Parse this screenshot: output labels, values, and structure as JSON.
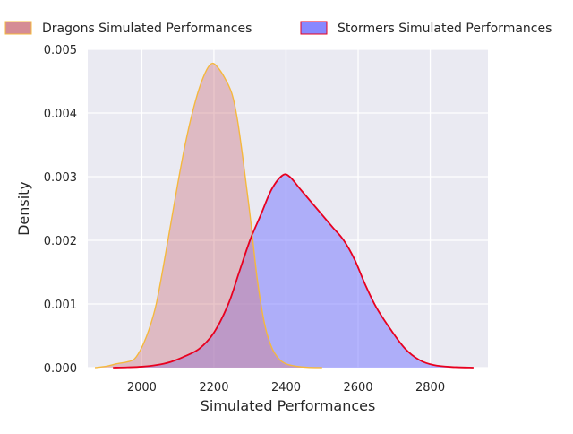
{
  "chart_data": {
    "type": "area",
    "title": "",
    "xlabel": "Simulated Performances",
    "ylabel": "Density",
    "xlim": [
      1850,
      2960
    ],
    "ylim": [
      0,
      0.005
    ],
    "x_ticks": [
      2000,
      2200,
      2400,
      2600,
      2800
    ],
    "x_tick_labels": [
      "2000",
      "2200",
      "2400",
      "2600",
      "2800"
    ],
    "y_ticks": [
      0,
      0.001,
      0.002,
      0.003,
      0.004,
      0.005
    ],
    "y_tick_labels": [
      "0.000",
      "0.001",
      "0.002",
      "0.003",
      "0.004",
      "0.005"
    ],
    "grid": true,
    "legend_position": "top, above plot",
    "series": [
      {
        "name": "Dragons Simulated Performances",
        "fill_color": "#d0808a",
        "line_color": "#f5b83d",
        "fill_opacity": 0.45,
        "points": [
          [
            1870,
            0.0
          ],
          [
            1900,
            2e-05
          ],
          [
            1930,
            6e-05
          ],
          [
            1960,
            9e-05
          ],
          [
            1980,
            0.00014
          ],
          [
            2000,
            0.00032
          ],
          [
            2020,
            0.0006
          ],
          [
            2040,
            0.001
          ],
          [
            2060,
            0.0016
          ],
          [
            2080,
            0.00225
          ],
          [
            2100,
            0.0029
          ],
          [
            2120,
            0.0035
          ],
          [
            2140,
            0.004
          ],
          [
            2160,
            0.0044
          ],
          [
            2180,
            0.00468
          ],
          [
            2195,
            0.00478
          ],
          [
            2210,
            0.00472
          ],
          [
            2230,
            0.00455
          ],
          [
            2250,
            0.0043
          ],
          [
            2265,
            0.0039
          ],
          [
            2280,
            0.0033
          ],
          [
            2300,
            0.0024
          ],
          [
            2320,
            0.0014
          ],
          [
            2340,
            0.0007
          ],
          [
            2360,
            0.00032
          ],
          [
            2380,
            0.00014
          ],
          [
            2400,
            6e-05
          ],
          [
            2430,
            2e-05
          ],
          [
            2460,
            5e-06
          ],
          [
            2500,
            0.0
          ]
        ]
      },
      {
        "name": "Stormers Simulated Performances",
        "fill_color": "#7b7bff",
        "line_color": "#e8001f",
        "fill_opacity": 0.55,
        "points": [
          [
            1920,
            0.0
          ],
          [
            1960,
            5e-06
          ],
          [
            2000,
            1.5e-05
          ],
          [
            2040,
            4e-05
          ],
          [
            2080,
            9e-05
          ],
          [
            2120,
            0.00018
          ],
          [
            2160,
            0.0003
          ],
          [
            2200,
            0.00055
          ],
          [
            2240,
            0.001
          ],
          [
            2270,
            0.0015
          ],
          [
            2300,
            0.002
          ],
          [
            2330,
            0.0024
          ],
          [
            2360,
            0.0028
          ],
          [
            2390,
            0.00302
          ],
          [
            2410,
            0.003
          ],
          [
            2440,
            0.0028
          ],
          [
            2470,
            0.0026
          ],
          [
            2500,
            0.0024
          ],
          [
            2530,
            0.0022
          ],
          [
            2560,
            0.002
          ],
          [
            2590,
            0.0017
          ],
          [
            2620,
            0.0013
          ],
          [
            2650,
            0.00095
          ],
          [
            2690,
            0.0006
          ],
          [
            2730,
            0.0003
          ],
          [
            2770,
            0.00012
          ],
          [
            2810,
            4e-05
          ],
          [
            2860,
            1e-05
          ],
          [
            2920,
            0.0
          ]
        ]
      }
    ]
  }
}
